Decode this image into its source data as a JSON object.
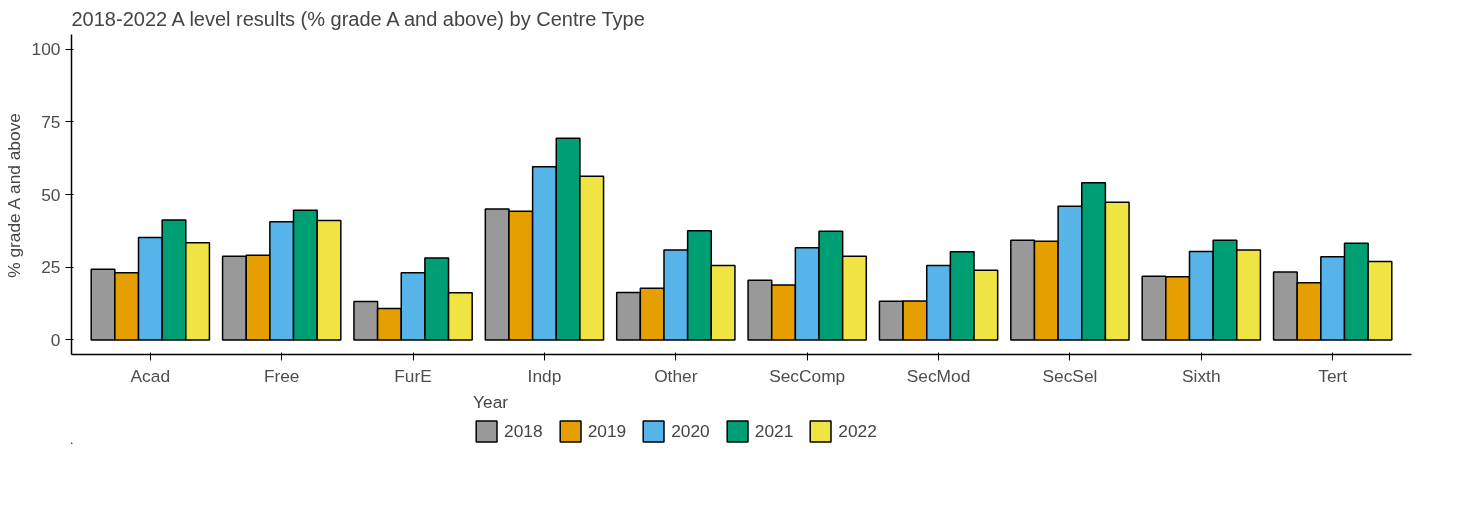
{
  "chart_data": {
    "type": "bar",
    "title": "2018-2022 A level results (% grade A and above) by Centre Type",
    "ylabel": "% grade A and above",
    "legend_title": "Year",
    "legend": "bottom",
    "grid": false,
    "categories": [
      "Acad",
      "Free",
      "FurE",
      "Indp",
      "Other",
      "SecComp",
      "SecMod",
      "SecSel",
      "Sixth",
      "Tert"
    ],
    "ylim": [
      -5,
      105
    ],
    "yticks": [
      0,
      25,
      50,
      75,
      100
    ],
    "series": [
      {
        "name": "2018",
        "color": "#999999",
        "values": [
          24.3,
          28.8,
          13.2,
          45.0,
          16.3,
          20.5,
          13.3,
          34.3,
          21.9,
          23.4
        ]
      },
      {
        "name": "2019",
        "color": "#e69f00",
        "values": [
          23.1,
          29.1,
          10.8,
          44.2,
          17.8,
          18.9,
          13.4,
          33.9,
          21.7,
          19.7
        ]
      },
      {
        "name": "2020",
        "color": "#56b4e9",
        "values": [
          35.2,
          40.6,
          23.1,
          59.5,
          30.9,
          31.7,
          25.6,
          46.0,
          30.4,
          28.6
        ]
      },
      {
        "name": "2021",
        "color": "#009e73",
        "values": [
          41.2,
          44.6,
          28.2,
          69.3,
          37.5,
          37.4,
          30.3,
          54.0,
          34.3,
          33.2
        ]
      },
      {
        "name": "2022",
        "color": "#f0e442",
        "values": [
          33.4,
          41.1,
          16.2,
          56.3,
          25.6,
          28.8,
          24.0,
          47.3,
          30.9,
          27.0
        ]
      }
    ]
  }
}
